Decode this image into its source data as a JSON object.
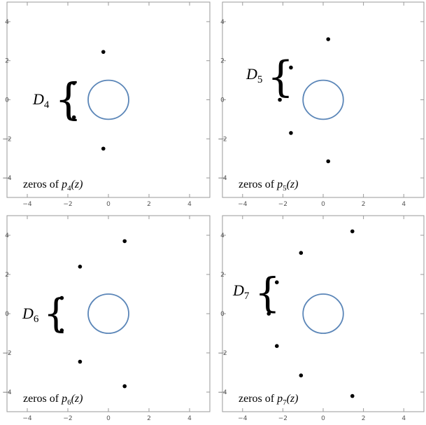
{
  "chart_data": [
    {
      "type": "scatter",
      "xlim": [
        -5,
        5
      ],
      "ylim": [
        -5,
        5
      ],
      "xticks": [
        -4,
        -2,
        0,
        2,
        4
      ],
      "yticks": [
        -4,
        -2,
        0,
        2,
        4
      ],
      "unit_circle": {
        "center": [
          0,
          0
        ],
        "radius": 1
      },
      "points": [
        [
          -1.7,
          0.85
        ],
        [
          -1.7,
          -0.9
        ],
        [
          -0.25,
          2.45
        ],
        [
          -0.25,
          -2.5
        ]
      ],
      "caption": {
        "prefix": "zeros of ",
        "func": "p",
        "sub": "4",
        "arg": "(z)"
      },
      "group_label": {
        "letter": "D",
        "sub": "4"
      }
    },
    {
      "type": "scatter",
      "xlim": [
        -5,
        5
      ],
      "ylim": [
        -5,
        5
      ],
      "xticks": [
        -4,
        -2,
        0,
        2,
        4
      ],
      "yticks": [
        -4,
        -2,
        0,
        2,
        4
      ],
      "unit_circle": {
        "center": [
          0,
          0
        ],
        "radius": 1
      },
      "points": [
        [
          -1.6,
          1.65
        ],
        [
          -2.15,
          0
        ],
        [
          -1.6,
          -1.7
        ],
        [
          0.25,
          3.1
        ],
        [
          0.25,
          -3.15
        ]
      ],
      "caption": {
        "prefix": "zeros of ",
        "func": "p",
        "sub": "5",
        "arg": "(z)"
      },
      "group_label": {
        "letter": "D",
        "sub": "5"
      }
    },
    {
      "type": "scatter",
      "xlim": [
        -5,
        5
      ],
      "ylim": [
        -5,
        5
      ],
      "xticks": [
        -4,
        -2,
        0,
        2,
        4
      ],
      "yticks": [
        -4,
        -2,
        0,
        2,
        4
      ],
      "unit_circle": {
        "center": [
          0,
          0
        ],
        "radius": 1
      },
      "points": [
        [
          -2.3,
          0.8
        ],
        [
          -2.3,
          -0.85
        ],
        [
          -1.4,
          2.4
        ],
        [
          -1.4,
          -2.45
        ],
        [
          0.8,
          3.7
        ],
        [
          0.8,
          -3.7
        ]
      ],
      "caption": {
        "prefix": "zeros of ",
        "func": "p",
        "sub": "6",
        "arg": "(z)"
      },
      "group_label": {
        "letter": "D",
        "sub": "6"
      }
    },
    {
      "type": "scatter",
      "xlim": [
        -5,
        5
      ],
      "ylim": [
        -5,
        5
      ],
      "xticks": [
        -4,
        -2,
        0,
        2,
        4
      ],
      "yticks": [
        -4,
        -2,
        0,
        2,
        4
      ],
      "unit_circle": {
        "center": [
          0,
          0
        ],
        "radius": 1
      },
      "points": [
        [
          -2.3,
          1.6
        ],
        [
          -2.7,
          0
        ],
        [
          -2.3,
          -1.65
        ],
        [
          -1.1,
          3.1
        ],
        [
          -1.1,
          -3.15
        ],
        [
          1.45,
          4.2
        ],
        [
          1.45,
          -4.2
        ]
      ],
      "caption": {
        "prefix": "zeros of ",
        "func": "p",
        "sub": "7",
        "arg": "(z)"
      },
      "group_label": {
        "letter": "D",
        "sub": "7"
      }
    }
  ]
}
